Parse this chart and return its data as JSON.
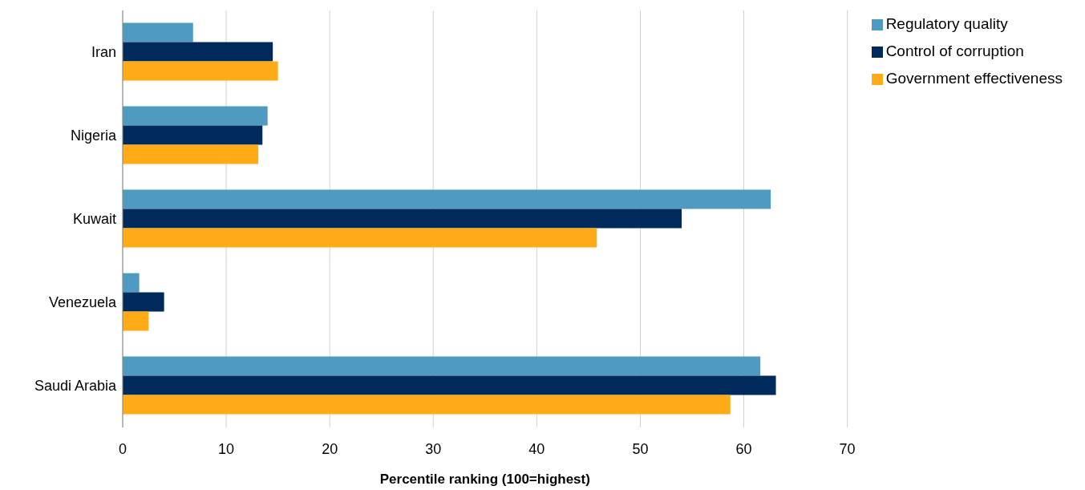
{
  "chart_data": {
    "type": "bar",
    "orientation": "horizontal",
    "xlabel": "Percentile ranking (100=highest)",
    "categories": [
      "Iran",
      "Nigeria",
      "Kuwait",
      "Venezuela",
      "Saudi Arabia"
    ],
    "series": [
      {
        "name": "Regulatory quality",
        "color": "#4f9ac0",
        "values": [
          6.8,
          14.0,
          62.6,
          1.6,
          61.6
        ]
      },
      {
        "name": "Control of corruption",
        "color": "#002a5c",
        "values": [
          14.5,
          13.5,
          54.0,
          4.0,
          63.1
        ]
      },
      {
        "name": "Government effectiveness",
        "color": "#ffab18",
        "values": [
          15.0,
          13.1,
          45.8,
          2.5,
          58.7
        ]
      }
    ],
    "xlim": [
      0,
      70
    ],
    "xticks": [
      0,
      10,
      20,
      30,
      40,
      50,
      60,
      70
    ],
    "grid": "x",
    "legend": "top right"
  }
}
